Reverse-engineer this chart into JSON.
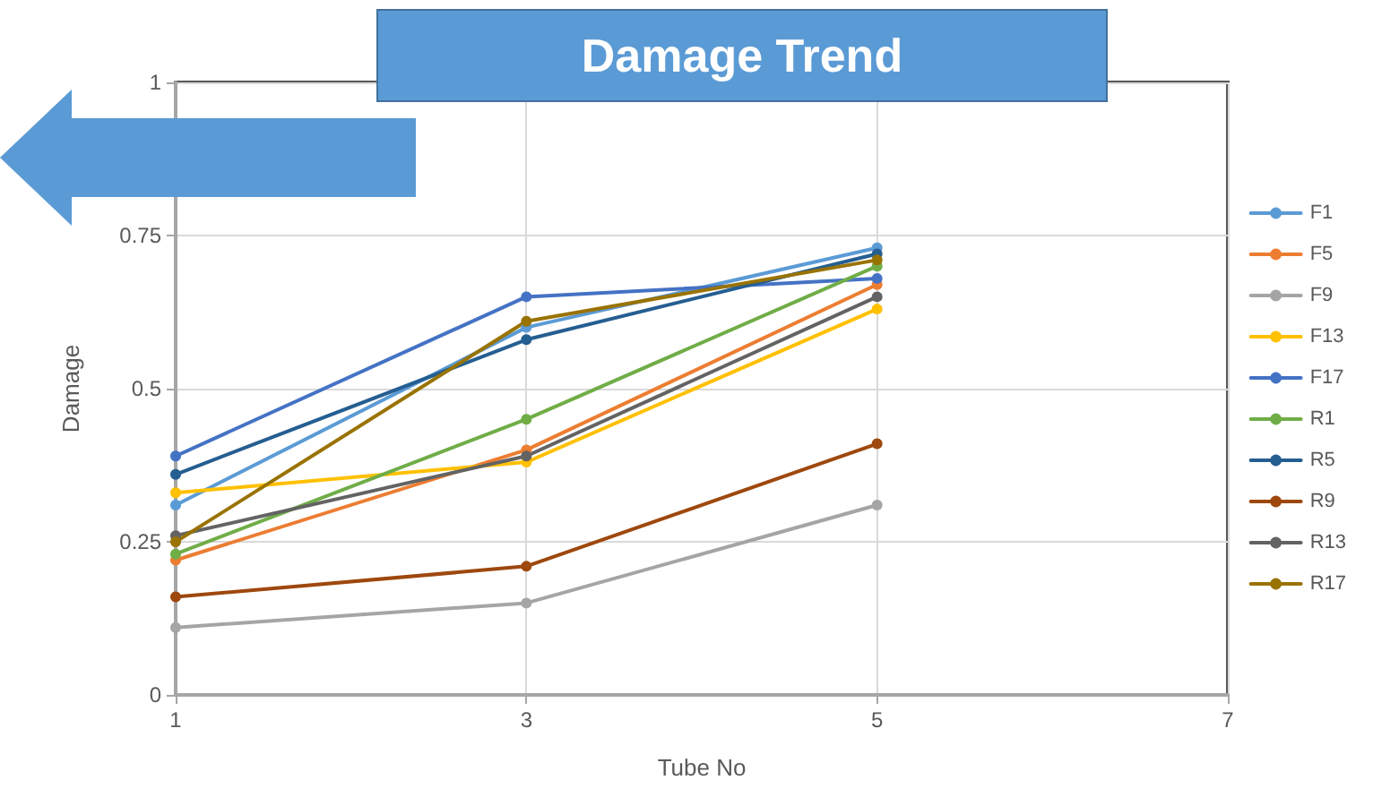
{
  "chart_data": {
    "type": "line",
    "title": "Damage Trend",
    "xlabel": "Tube No",
    "ylabel": "Damage",
    "x": [
      1,
      3,
      5
    ],
    "xlim": [
      1,
      7
    ],
    "xticks": [
      1,
      3,
      5,
      7
    ],
    "ylim": [
      0,
      1
    ],
    "yticks": [
      0,
      0.25,
      0.5,
      0.75,
      1
    ],
    "grid": true,
    "legend": "right",
    "marker": "circle",
    "line_style": "solid",
    "series": [
      {
        "name": "F1",
        "color": "#5b9bd5",
        "values": [
          0.31,
          0.6,
          0.73
        ]
      },
      {
        "name": "F5",
        "color": "#ed7d31",
        "values": [
          0.22,
          0.4,
          0.67
        ]
      },
      {
        "name": "F9",
        "color": "#a5a5a5",
        "values": [
          0.11,
          0.15,
          0.31
        ]
      },
      {
        "name": "F13",
        "color": "#ffc000",
        "values": [
          0.33,
          0.38,
          0.63
        ]
      },
      {
        "name": "F17",
        "color": "#4472c4",
        "values": [
          0.39,
          0.65,
          0.68
        ]
      },
      {
        "name": "R1",
        "color": "#70ad47",
        "values": [
          0.23,
          0.45,
          0.7
        ]
      },
      {
        "name": "R5",
        "color": "#255e91",
        "values": [
          0.36,
          0.58,
          0.72
        ]
      },
      {
        "name": "R9",
        "color": "#9e480e",
        "values": [
          0.16,
          0.21,
          0.41
        ]
      },
      {
        "name": "R13",
        "color": "#636363",
        "values": [
          0.26,
          0.39,
          0.65
        ]
      },
      {
        "name": "R17",
        "color": "#997300",
        "values": [
          0.25,
          0.61,
          0.71
        ]
      }
    ]
  }
}
